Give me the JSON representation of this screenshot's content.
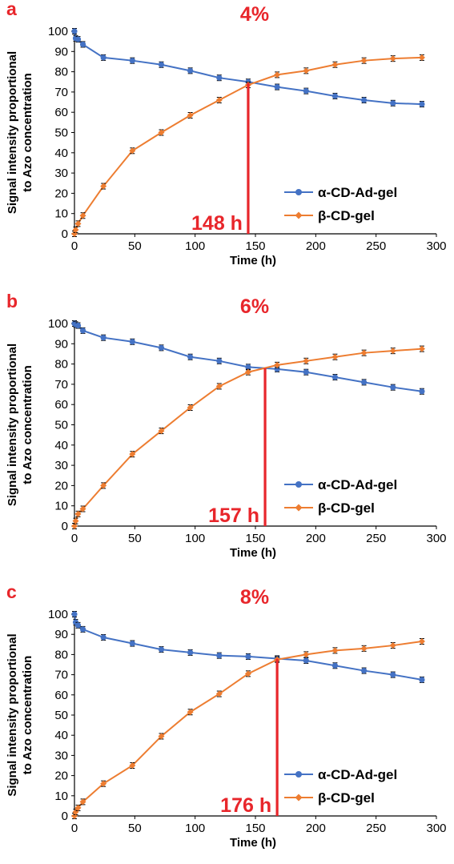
{
  "colors": {
    "alpha": "#4472c4",
    "beta": "#ed7d31",
    "annotation": "#e8262b"
  },
  "shared": {
    "ylabel_line1": "Signal intensity proportional",
    "ylabel_line2": "to Azo concentration",
    "xlabel": "Time (h)",
    "legend": [
      "α-CD-Ad-gel",
      "β-CD-gel"
    ]
  },
  "chart_data": [
    {
      "type": "line",
      "panel": "a",
      "title": "4%",
      "xlabel": "Time (h)",
      "ylabel": "Signal intensity proportional to Azo concentration",
      "xlim": [
        0,
        300
      ],
      "ylim": [
        0,
        100
      ],
      "xticks": [
        0,
        50,
        100,
        150,
        200,
        250,
        300
      ],
      "yticks": [
        0,
        10,
        20,
        30,
        40,
        50,
        60,
        70,
        80,
        90,
        100
      ],
      "legend_position": "bottom-right",
      "annotation": {
        "x": 144,
        "label": "148 h"
      },
      "series": [
        {
          "name": "α-CD-Ad-gel",
          "color": "#4472c4",
          "x": [
            0,
            1,
            3,
            7,
            24,
            48,
            72,
            96,
            120,
            144,
            168,
            192,
            216,
            240,
            264,
            288
          ],
          "y": [
            100,
            96.5,
            96,
            93.5,
            87,
            85.5,
            83.5,
            80.5,
            77,
            75,
            72.5,
            70.5,
            68,
            66,
            64.5,
            64
          ]
        },
        {
          "name": "β-CD-gel",
          "color": "#ed7d31",
          "x": [
            0,
            1,
            3,
            7,
            24,
            48,
            72,
            96,
            120,
            144,
            168,
            192,
            216,
            240,
            264,
            288
          ],
          "y": [
            0,
            2,
            5,
            9,
            23.5,
            41,
            50,
            58.5,
            66,
            73.5,
            78.5,
            80.5,
            83.5,
            85.5,
            86.5,
            87
          ]
        }
      ]
    },
    {
      "type": "line",
      "panel": "b",
      "title": "6%",
      "xlabel": "Time (h)",
      "ylabel": "Signal intensity proportional to Azo concentration",
      "xlim": [
        0,
        300
      ],
      "ylim": [
        0,
        100
      ],
      "xticks": [
        0,
        50,
        100,
        150,
        200,
        250,
        300
      ],
      "yticks": [
        0,
        10,
        20,
        30,
        40,
        50,
        60,
        70,
        80,
        90,
        100
      ],
      "legend_position": "bottom-right",
      "annotation": {
        "x": 158,
        "label": "157 h"
      },
      "series": [
        {
          "name": "α-CD-Ad-gel",
          "color": "#4472c4",
          "x": [
            0,
            1,
            3,
            7,
            24,
            48,
            72,
            96,
            120,
            144,
            168,
            192,
            216,
            240,
            264,
            288
          ],
          "y": [
            100,
            99.5,
            99,
            96.5,
            93,
            91,
            88,
            83.5,
            81.5,
            78.5,
            77.5,
            76,
            73.5,
            71,
            68.5,
            66.5
          ]
        },
        {
          "name": "β-CD-gel",
          "color": "#ed7d31",
          "x": [
            0,
            1,
            3,
            7,
            24,
            48,
            72,
            96,
            120,
            144,
            168,
            192,
            216,
            240,
            264,
            288
          ],
          "y": [
            0,
            2.5,
            6,
            8.5,
            20,
            35.5,
            47,
            58.5,
            69,
            76,
            79.5,
            81.5,
            83.5,
            85.5,
            86.5,
            87.5
          ]
        }
      ]
    },
    {
      "type": "line",
      "panel": "c",
      "title": "8%",
      "xlabel": "Time (h)",
      "ylabel": "Signal intensity proportional to Azo concentration",
      "xlim": [
        0,
        300
      ],
      "ylim": [
        0,
        100
      ],
      "xticks": [
        0,
        50,
        100,
        150,
        200,
        250,
        300
      ],
      "yticks": [
        0,
        10,
        20,
        30,
        40,
        50,
        60,
        70,
        80,
        90,
        100
      ],
      "legend_position": "bottom-right",
      "annotation": {
        "x": 168,
        "label": "176 h"
      },
      "series": [
        {
          "name": "α-CD-Ad-gel",
          "color": "#4472c4",
          "x": [
            0,
            1,
            3,
            7,
            24,
            48,
            72,
            96,
            120,
            144,
            168,
            192,
            216,
            240,
            264,
            288
          ],
          "y": [
            100,
            96,
            94.5,
            92.5,
            88.5,
            85.5,
            82.5,
            81,
            79.5,
            79,
            78,
            77,
            74.5,
            72,
            70,
            67.5
          ]
        },
        {
          "name": "β-CD-gel",
          "color": "#ed7d31",
          "x": [
            0,
            1,
            3,
            7,
            24,
            48,
            72,
            96,
            120,
            144,
            168,
            192,
            216,
            240,
            264,
            288
          ],
          "y": [
            0,
            2,
            4,
            7,
            16,
            25,
            39.5,
            51.5,
            60.5,
            70.5,
            77.5,
            80,
            82,
            83,
            84.5,
            86.5
          ]
        }
      ]
    }
  ]
}
